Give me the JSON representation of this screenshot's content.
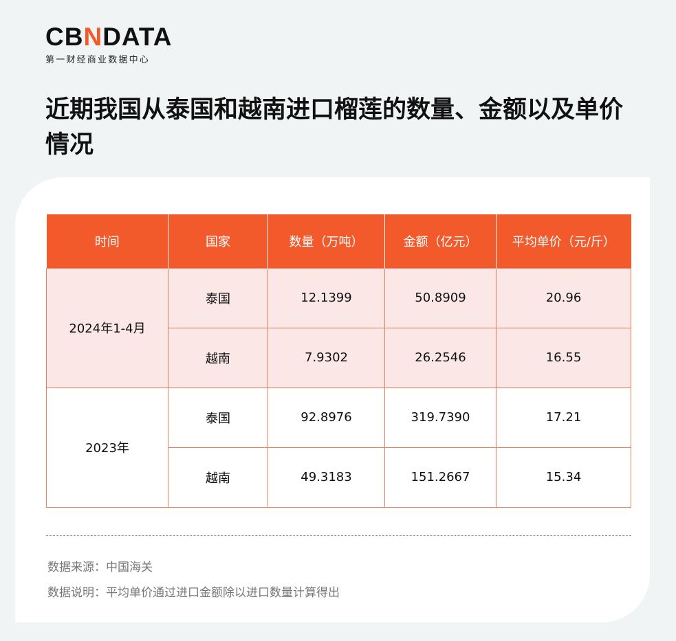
{
  "logo": {
    "word_pre": "CB",
    "word_n": "N",
    "word_post": "DATA",
    "sub": "第一财经商业数据中心"
  },
  "title": "近期我国从泰国和越南进口榴莲的数量、金额以及单价情况",
  "table": {
    "headers": [
      "时间",
      "国家",
      "数量（万吨）",
      "金额（亿元）",
      "平均单价（元/斤）"
    ],
    "groups": [
      {
        "period": "2024年1-4月",
        "rows": [
          [
            "泰国",
            "12.1399",
            "50.8909",
            "20.96"
          ],
          [
            "越南",
            "7.9302",
            "26.2546",
            "16.55"
          ]
        ]
      },
      {
        "period": "2023年",
        "rows": [
          [
            "泰国",
            "92.8976",
            "319.7390",
            "17.21"
          ],
          [
            "越南",
            "49.3183",
            "151.2667",
            "15.34"
          ]
        ]
      }
    ]
  },
  "footer": {
    "source": "数据来源：中国海关",
    "note": "数据说明：平均单价通过进口金额除以进口数量计算得出"
  },
  "colors": {
    "accent": "#f25a2c",
    "row_tint": "#fbe8e6"
  }
}
